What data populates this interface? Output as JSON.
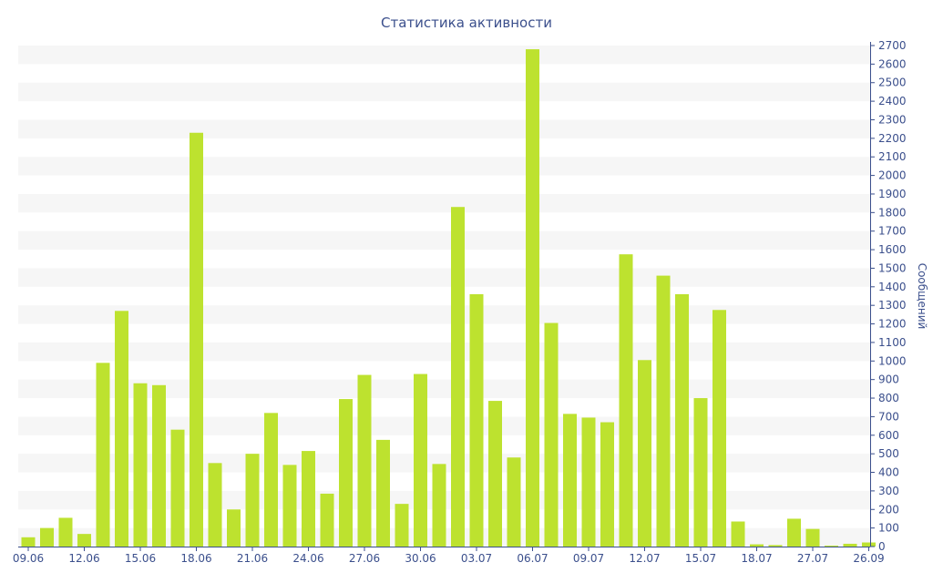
{
  "chart_data": {
    "type": "bar",
    "title": "Статистика активности",
    "ylabel": "Сообщений",
    "xlabel": "",
    "ylim": [
      0,
      2700
    ],
    "y_ticks": [
      0,
      100,
      200,
      300,
      400,
      500,
      600,
      700,
      800,
      900,
      1000,
      1100,
      1200,
      1300,
      1400,
      1500,
      1600,
      1700,
      1800,
      1900,
      2000,
      2100,
      2200,
      2300,
      2400,
      2500,
      2600,
      2700
    ],
    "x_tick_labels": [
      "09.06",
      "12.06",
      "15.06",
      "18.06",
      "21.06",
      "24.06",
      "27.06",
      "30.06",
      "03.07",
      "06.07",
      "09.07",
      "12.07",
      "15.07",
      "18.07",
      "27.07",
      "26.09"
    ],
    "x_tick_bar_index": [
      0,
      3,
      6,
      9,
      12,
      15,
      18,
      21,
      24,
      27,
      30,
      33,
      36,
      39,
      42,
      45
    ],
    "grid": true,
    "bar_color": "#bde22f",
    "values": [
      50,
      100,
      155,
      68,
      990,
      1270,
      880,
      870,
      630,
      2230,
      450,
      200,
      500,
      720,
      440,
      515,
      285,
      795,
      925,
      575,
      230,
      930,
      445,
      1830,
      1360,
      785,
      480,
      2680,
      1205,
      715,
      695,
      670,
      1575,
      1005,
      1460,
      1360,
      800,
      1275,
      135,
      12,
      8,
      150,
      95,
      5,
      15,
      22
    ]
  },
  "colors": {
    "text": "#3b4f8c",
    "grid_band": "#f6f6f6",
    "axis": "#3b4f8c"
  }
}
